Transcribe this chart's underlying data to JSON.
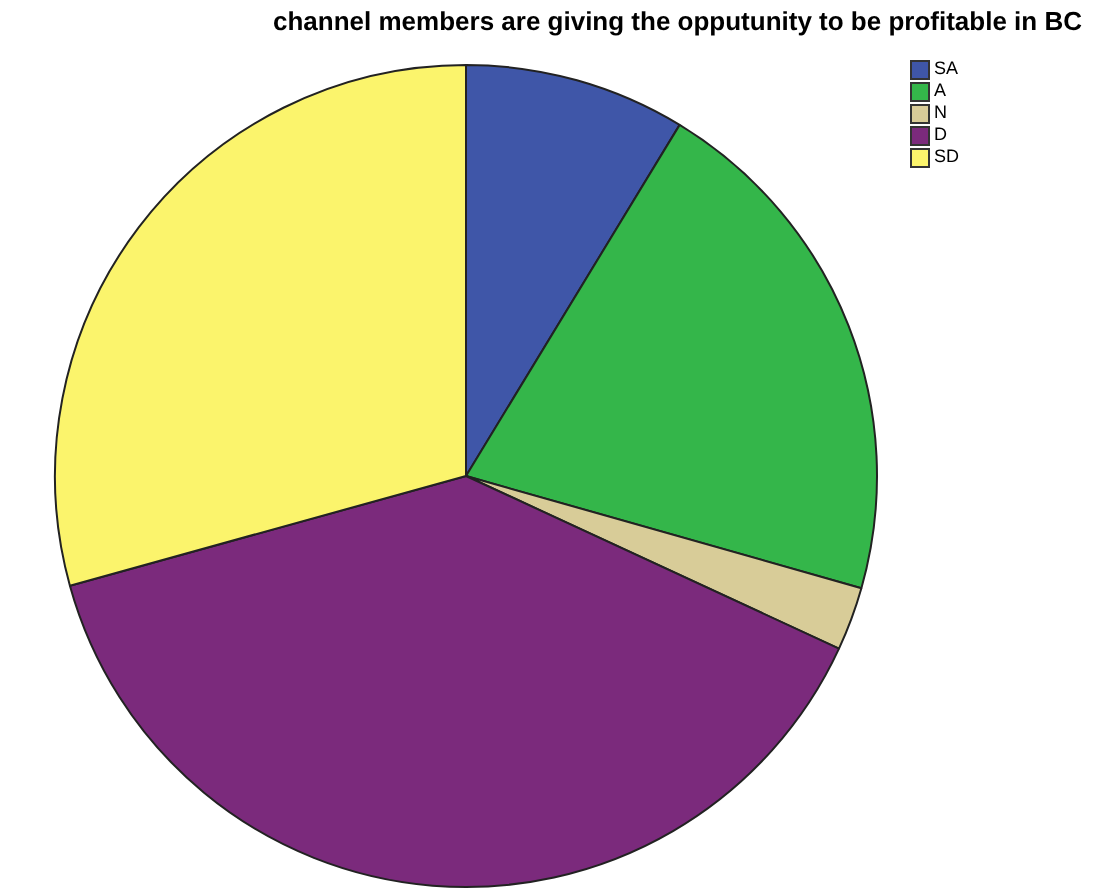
{
  "chart_data": {
    "type": "pie",
    "title": "channel members are giving the opputunity to be profitable in BC",
    "categories": [
      "SA",
      "A",
      "N",
      "D",
      "SD"
    ],
    "values": [
      8.7,
      20.7,
      2.5,
      38.8,
      29.3
    ],
    "colors": [
      "#3f56a8",
      "#34b64a",
      "#d8cc98",
      "#7b2a7c",
      "#fbf46c"
    ],
    "legend": "top right"
  }
}
